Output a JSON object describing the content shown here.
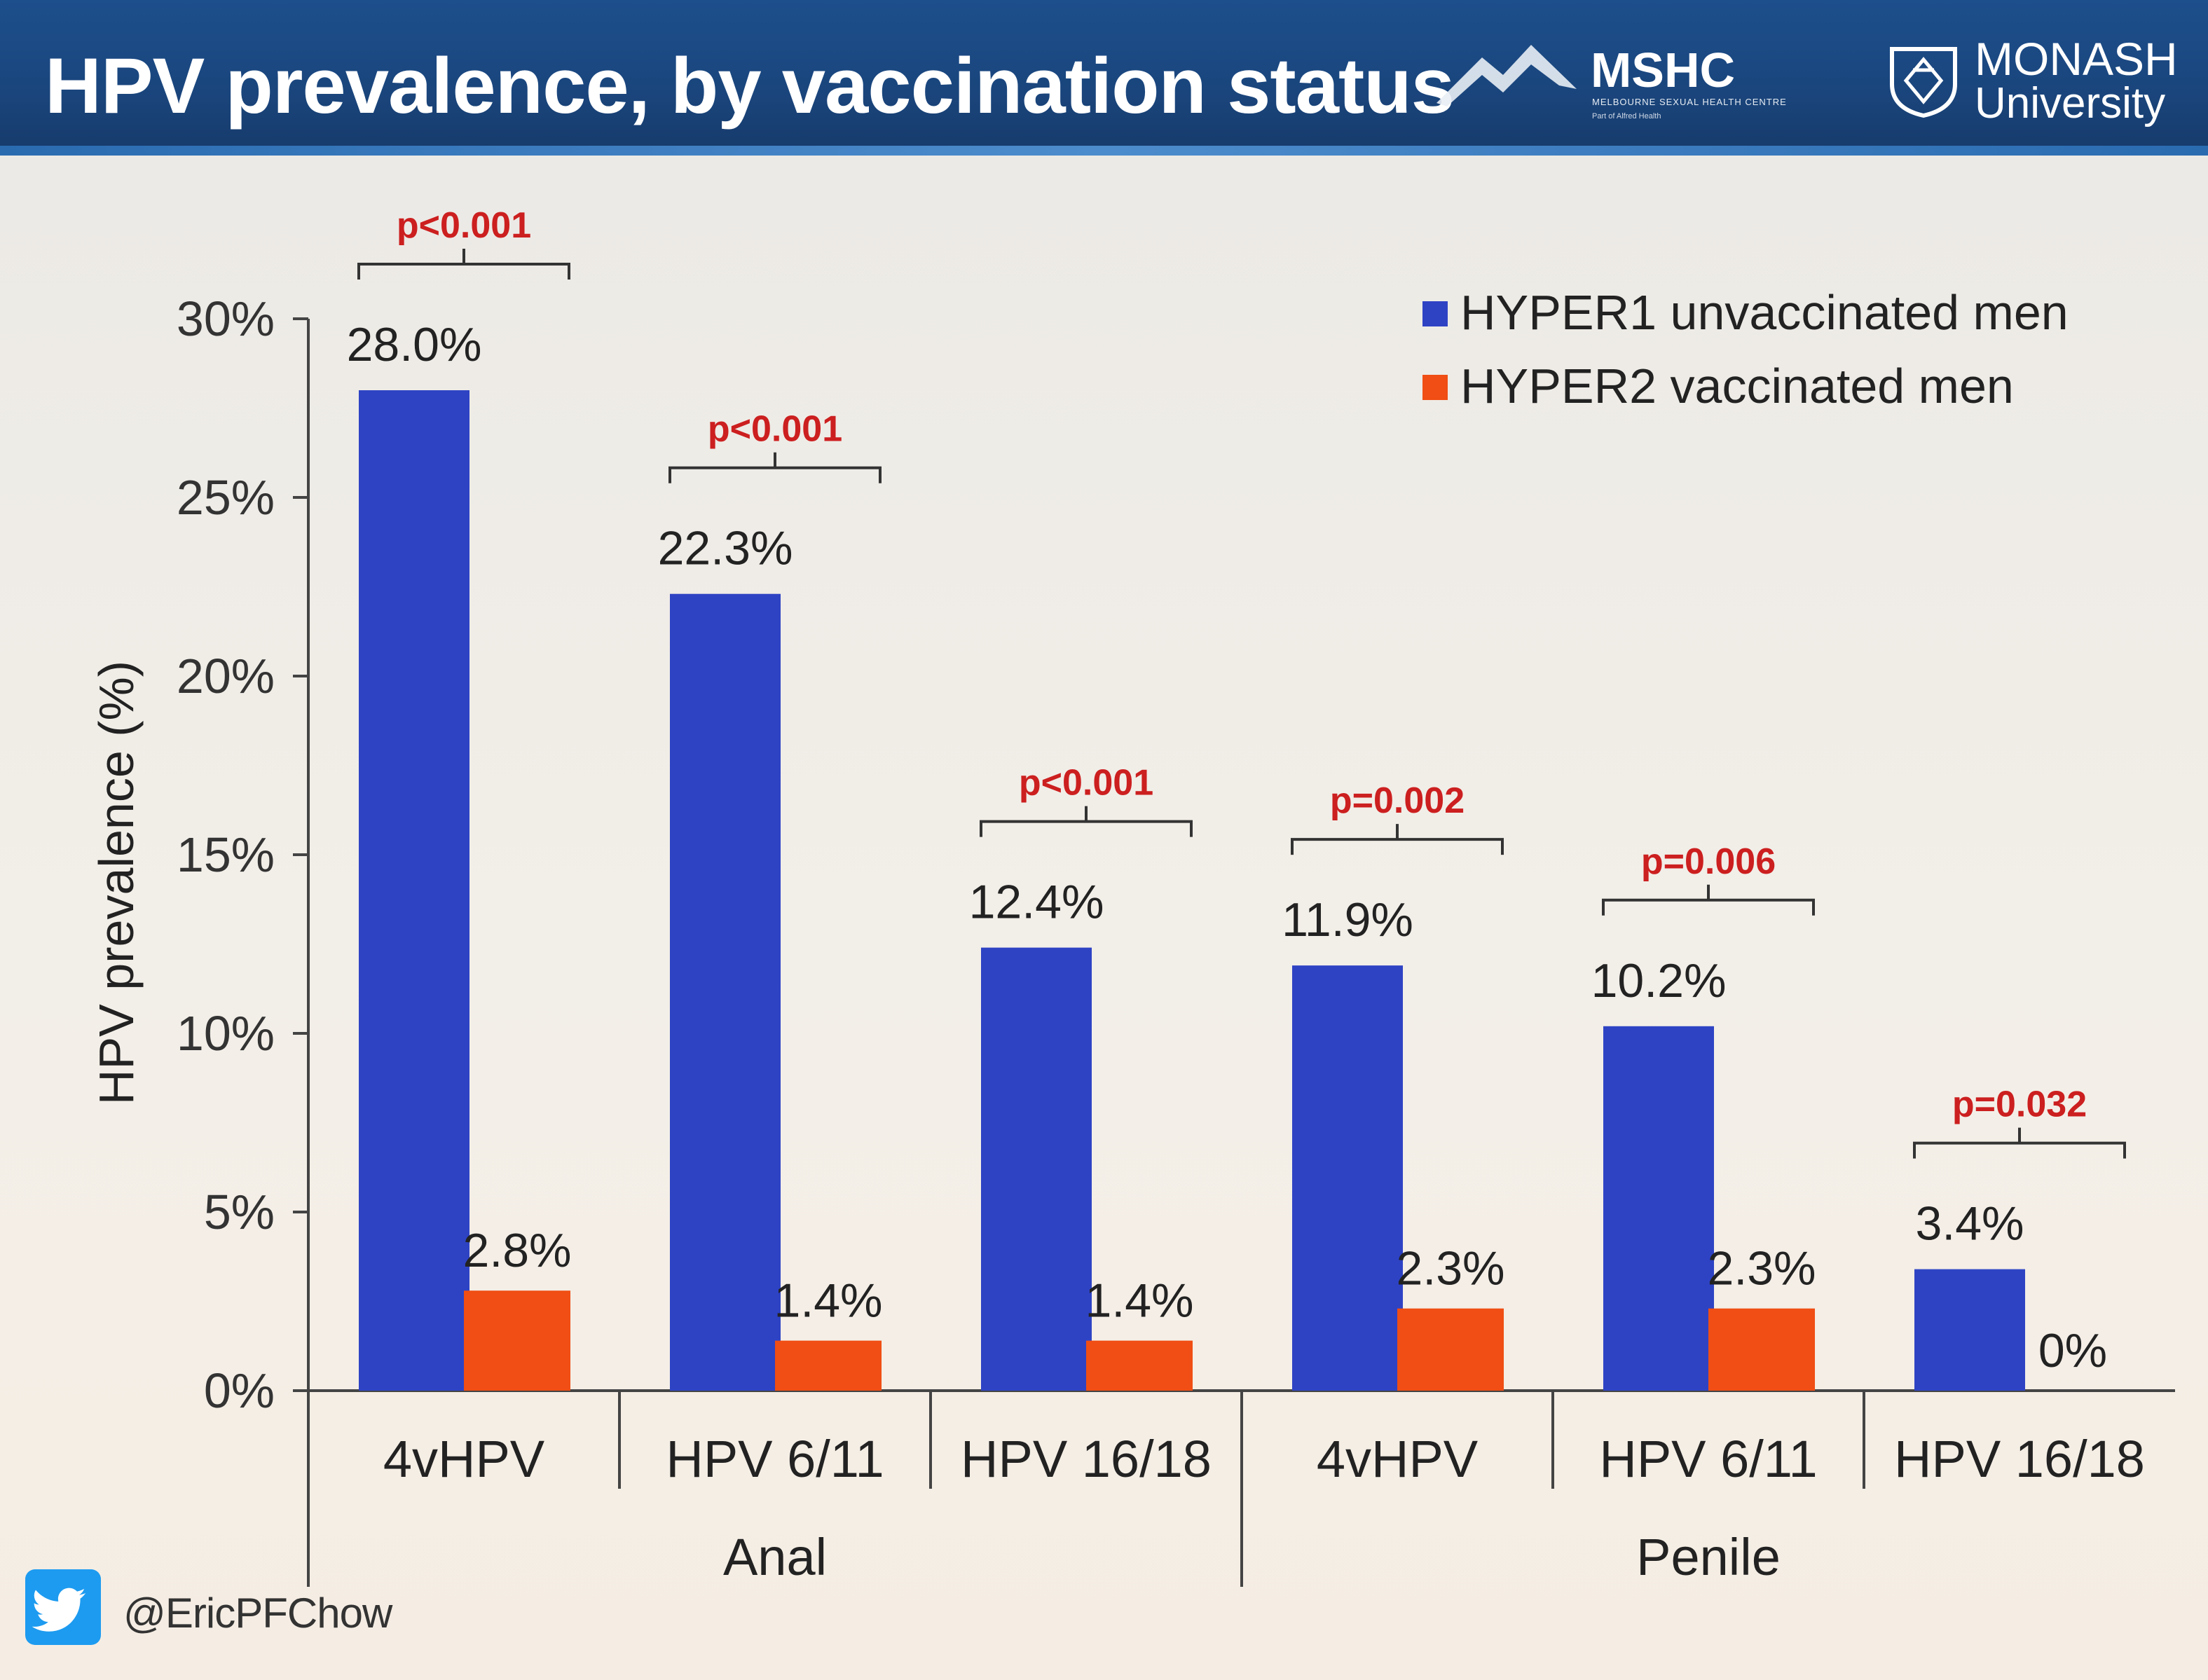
{
  "slide": {
    "title": "HPV prevalence, by vaccination status",
    "handle": "@EricPFChow"
  },
  "logos": {
    "mshc_name": "MSHC",
    "mshc_full": "MELBOURNE SEXUAL HEALTH CENTRE",
    "mshc_sub": "Part of Alfred Health",
    "monash_name": "MONASH",
    "monash_sub": "University"
  },
  "chart_data": {
    "type": "bar",
    "title": "",
    "xlabel": "",
    "ylabel": "HPV prevalence (%)",
    "ylim": [
      0,
      30
    ],
    "yticks": [
      "0%",
      "5%",
      "10%",
      "15%",
      "20%",
      "25%",
      "30%"
    ],
    "ytick_values": [
      0,
      5,
      10,
      15,
      20,
      25,
      30
    ],
    "categories": [
      "4vHPV",
      "HPV 6/11",
      "HPV 16/18",
      "4vHPV",
      "HPV 6/11",
      "HPV 16/18"
    ],
    "groups": [
      {
        "name": "Anal",
        "start": 0,
        "end": 2
      },
      {
        "name": "Penile",
        "start": 3,
        "end": 5
      }
    ],
    "series": [
      {
        "name": "HYPER1 unvaccinated men",
        "color": "#2e43c4",
        "values": [
          28.0,
          22.3,
          12.4,
          11.9,
          10.2,
          3.4
        ],
        "labels": [
          "28.0%",
          "22.3%",
          "12.4%",
          "11.9%",
          "10.2%",
          "3.4%"
        ]
      },
      {
        "name": "HYPER2 vaccinated men",
        "color": "#f04e14",
        "values": [
          2.8,
          1.4,
          1.4,
          2.3,
          2.3,
          0
        ],
        "labels": [
          "2.8%",
          "1.4%",
          "1.4%",
          "2.3%",
          "2.3%",
          "0%"
        ]
      }
    ],
    "p_values": [
      "p<0.001",
      "p<0.001",
      "p<0.001",
      "p=0.002",
      "p=0.006",
      "p=0.032"
    ],
    "legend_position": "top-right",
    "grid": false
  }
}
